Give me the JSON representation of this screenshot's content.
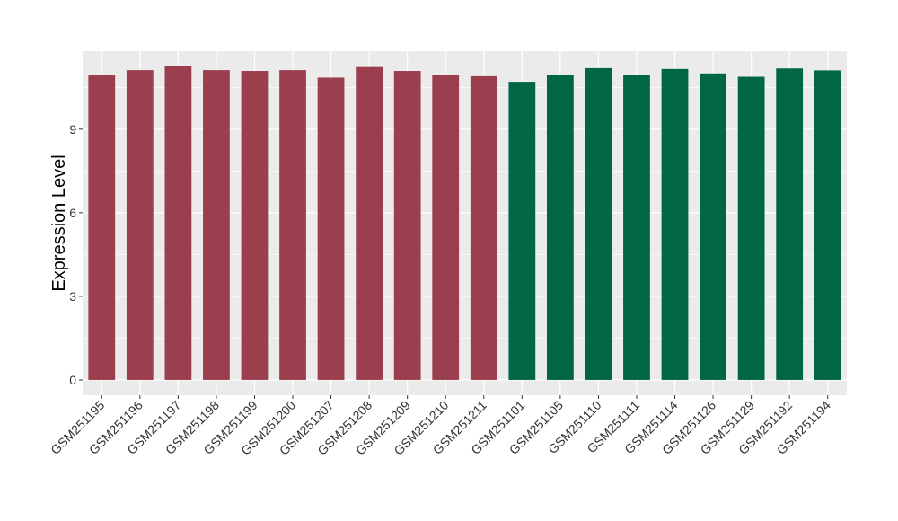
{
  "chart_data": {
    "type": "bar",
    "title": "",
    "xlabel": "",
    "ylabel": "Expression Level",
    "ylim": [
      -0.55,
      11.8
    ],
    "yticks": [
      0,
      3,
      6,
      9
    ],
    "ytick_labels": [
      "0",
      "3",
      "6",
      "9"
    ],
    "grid": true,
    "legend": "none",
    "categories": [
      "GSM251195",
      "GSM251196",
      "GSM251197",
      "GSM251198",
      "GSM251199",
      "GSM251200",
      "GSM251207",
      "GSM251208",
      "GSM251209",
      "GSM251210",
      "GSM251211",
      "GSM251101",
      "GSM251105",
      "GSM251110",
      "GSM251111",
      "GSM251114",
      "GSM251126",
      "GSM251129",
      "GSM251192",
      "GSM251194"
    ],
    "values": [
      10.96,
      11.12,
      11.27,
      11.12,
      11.09,
      11.12,
      10.85,
      11.23,
      11.09,
      10.96,
      10.9,
      10.7,
      10.96,
      11.19,
      10.93,
      11.16,
      11.0,
      10.88,
      11.18,
      11.11
    ],
    "groups": [
      0,
      0,
      0,
      0,
      0,
      0,
      0,
      0,
      0,
      0,
      0,
      1,
      1,
      1,
      1,
      1,
      1,
      1,
      1,
      1
    ],
    "group_colors": [
      "#9b3f4f",
      "#006644"
    ],
    "panel_color": "#ebebeb",
    "grid_color": "#ffffff"
  }
}
